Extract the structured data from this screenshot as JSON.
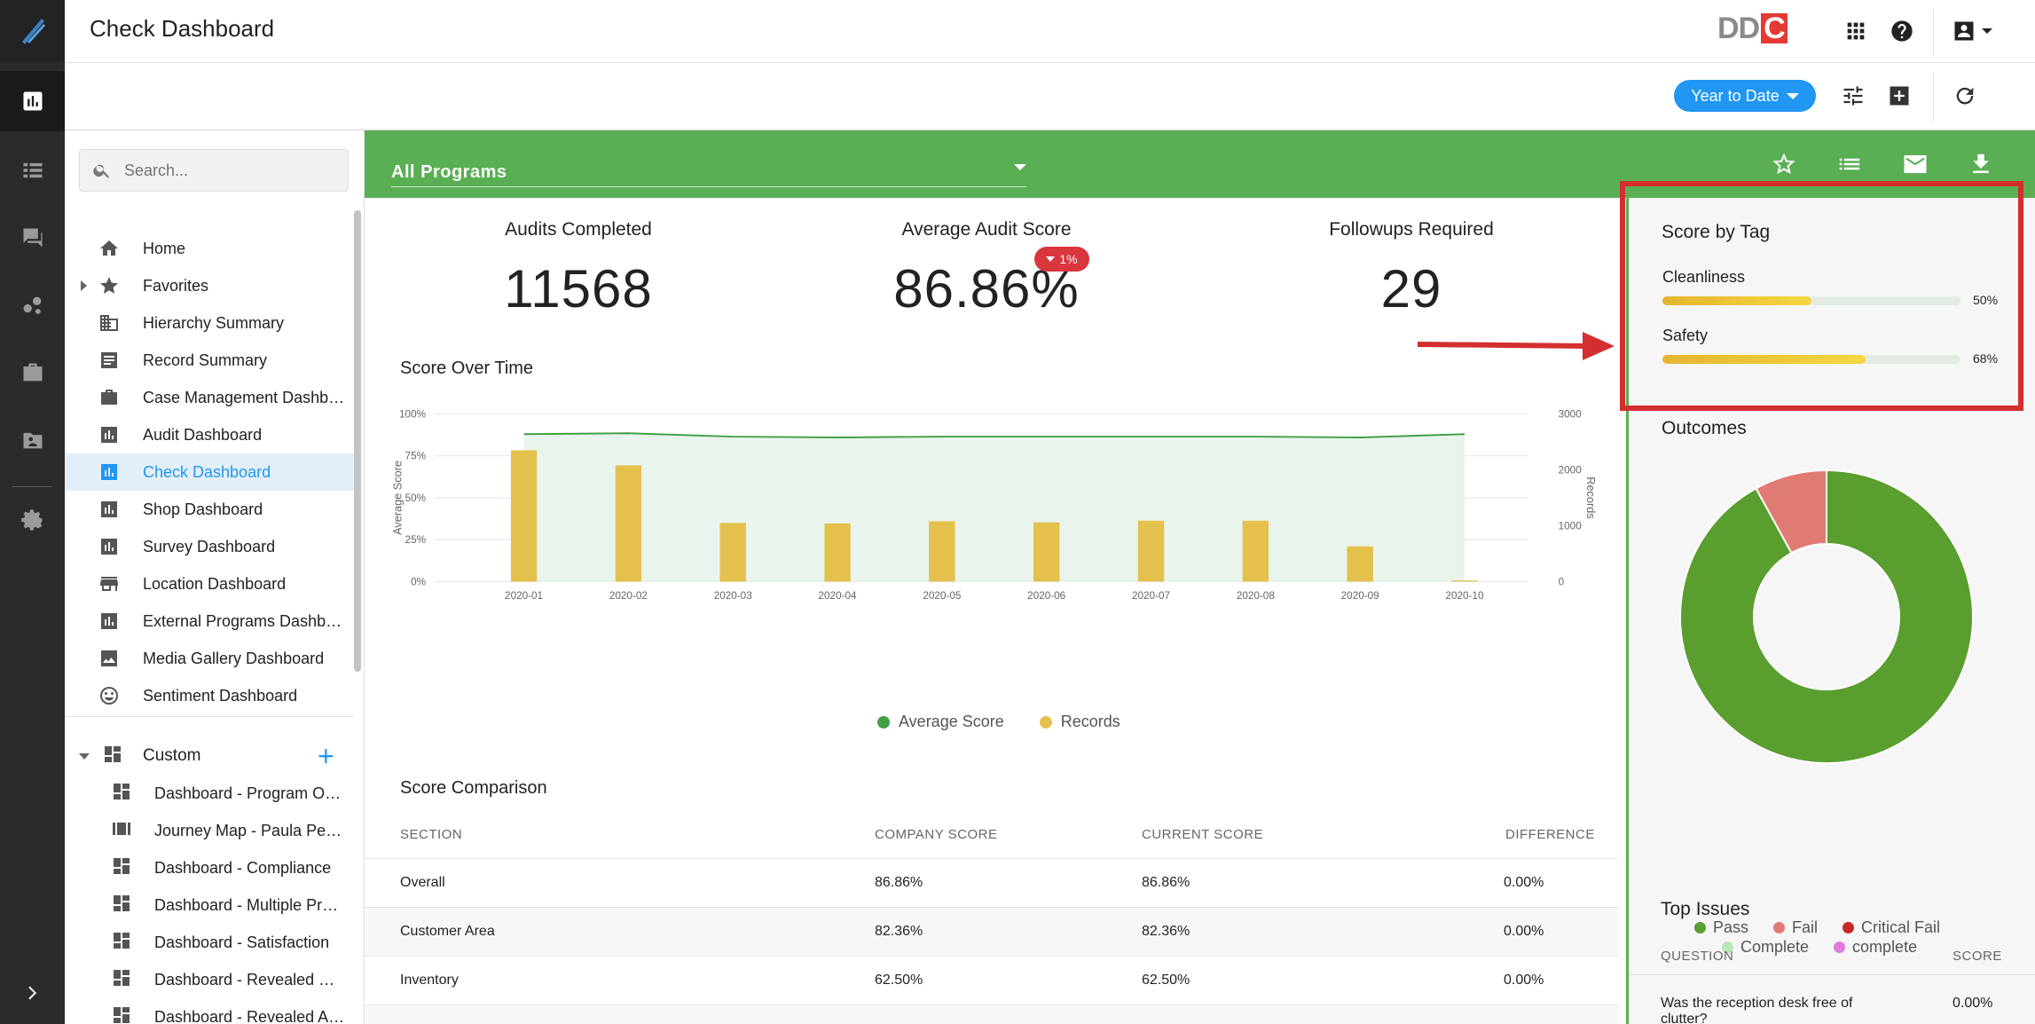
{
  "app": {
    "title": "Check Dashboard",
    "brand_dd": "DD",
    "brand_c": "C"
  },
  "toolbar": {
    "date_range": "Year to Date"
  },
  "search": {
    "placeholder": "Search..."
  },
  "nav": {
    "items": [
      {
        "label": "Home",
        "icon": "home-icon"
      },
      {
        "label": "Favorites",
        "icon": "star-icon"
      },
      {
        "label": "Hierarchy Summary",
        "icon": "hierarchy-icon"
      },
      {
        "label": "Record Summary",
        "icon": "list-icon"
      },
      {
        "label": "Case Management Dashboard",
        "icon": "briefcase-icon"
      },
      {
        "label": "Audit Dashboard",
        "icon": "bar-chart-icon"
      },
      {
        "label": "Check Dashboard",
        "icon": "bar-chart-icon"
      },
      {
        "label": "Shop Dashboard",
        "icon": "bar-chart-icon"
      },
      {
        "label": "Survey Dashboard",
        "icon": "bar-chart-icon"
      },
      {
        "label": "Location Dashboard",
        "icon": "store-icon"
      },
      {
        "label": "External Programs Dashboard",
        "icon": "bar-chart-icon"
      },
      {
        "label": "Media Gallery Dashboard",
        "icon": "image-icon"
      },
      {
        "label": "Sentiment Dashboard",
        "icon": "smiley-icon"
      }
    ],
    "custom_label": "Custom",
    "custom_items": [
      "Dashboard - Program Overview",
      "Journey Map - Paula Perez",
      "Dashboard - Compliance",
      "Dashboard - Multiple Programs",
      "Dashboard - Satisfaction",
      "Dashboard - Revealed Shop",
      "Dashboard - Revealed Audit"
    ]
  },
  "program": {
    "selected": "All Programs"
  },
  "kpis": {
    "audits_label": "Audits Completed",
    "audits_value": "11568",
    "avg_label": "Average Audit Score",
    "avg_value": "86.86%",
    "avg_change": "1%",
    "followups_label": "Followups Required",
    "followups_value": "29"
  },
  "score_over_time": {
    "title": "Score Over Time",
    "legend_score": "Average Score",
    "legend_records": "Records"
  },
  "chart_data": {
    "type": "bar",
    "categories": [
      "2020-01",
      "2020-02",
      "2020-03",
      "2020-04",
      "2020-05",
      "2020-06",
      "2020-07",
      "2020-08",
      "2020-09",
      "2020-10"
    ],
    "series": [
      {
        "name": "Records",
        "values": [
          2350,
          2080,
          1050,
          1040,
          1080,
          1060,
          1090,
          1090,
          630,
          20
        ],
        "axis": "right",
        "color": "#e4c04d"
      },
      {
        "name": "Average Score",
        "values": [
          88,
          88.5,
          86.5,
          86,
          86.5,
          86.5,
          86.5,
          86.5,
          86,
          88
        ],
        "axis": "left",
        "type": "line",
        "color": "#43a047"
      }
    ],
    "ylabel": "Average Score",
    "y2label": "Records",
    "ylim": [
      0,
      100
    ],
    "y2lim": [
      0,
      3000
    ],
    "yticks": [
      "0%",
      "25%",
      "50%",
      "75%",
      "100%"
    ],
    "y2ticks": [
      "0",
      "1000",
      "2000",
      "3000"
    ]
  },
  "comparison": {
    "title": "Score Comparison",
    "headers": [
      "SECTION",
      "COMPANY SCORE",
      "CURRENT SCORE",
      "DIFFERENCE"
    ],
    "rows": [
      [
        "Overall",
        "86.86%",
        "86.86%",
        "0.00%"
      ],
      [
        "Customer Area",
        "82.36%",
        "82.36%",
        "0.00%"
      ],
      [
        "Inventory",
        "62.50%",
        "62.50%",
        "0.00%"
      ]
    ]
  },
  "score_by_tag": {
    "title": "Score by Tag",
    "tags": [
      {
        "label": "Cleanliness",
        "pct": "50%",
        "value": 0.5
      },
      {
        "label": "Safety",
        "pct": "68%",
        "value": 0.68
      }
    ]
  },
  "outcomes": {
    "title": "Outcomes",
    "slices": [
      {
        "label": "Pass",
        "value": 92,
        "color": "#5a9e2f"
      },
      {
        "label": "Fail",
        "value": 8,
        "color": "#e07b73"
      },
      {
        "label": "Critical Fail",
        "value": 0,
        "color": "#c62828"
      },
      {
        "label": "Complete",
        "value": 0,
        "color": "#b9e6b9"
      },
      {
        "label": "complete",
        "value": 0,
        "color": "#e07be0"
      }
    ]
  },
  "top_issues": {
    "title": "Top Issues",
    "headers": [
      "QUESTION",
      "SCORE"
    ],
    "rows": [
      [
        "Was the reception desk free of clutter?",
        "0.00%"
      ]
    ]
  }
}
